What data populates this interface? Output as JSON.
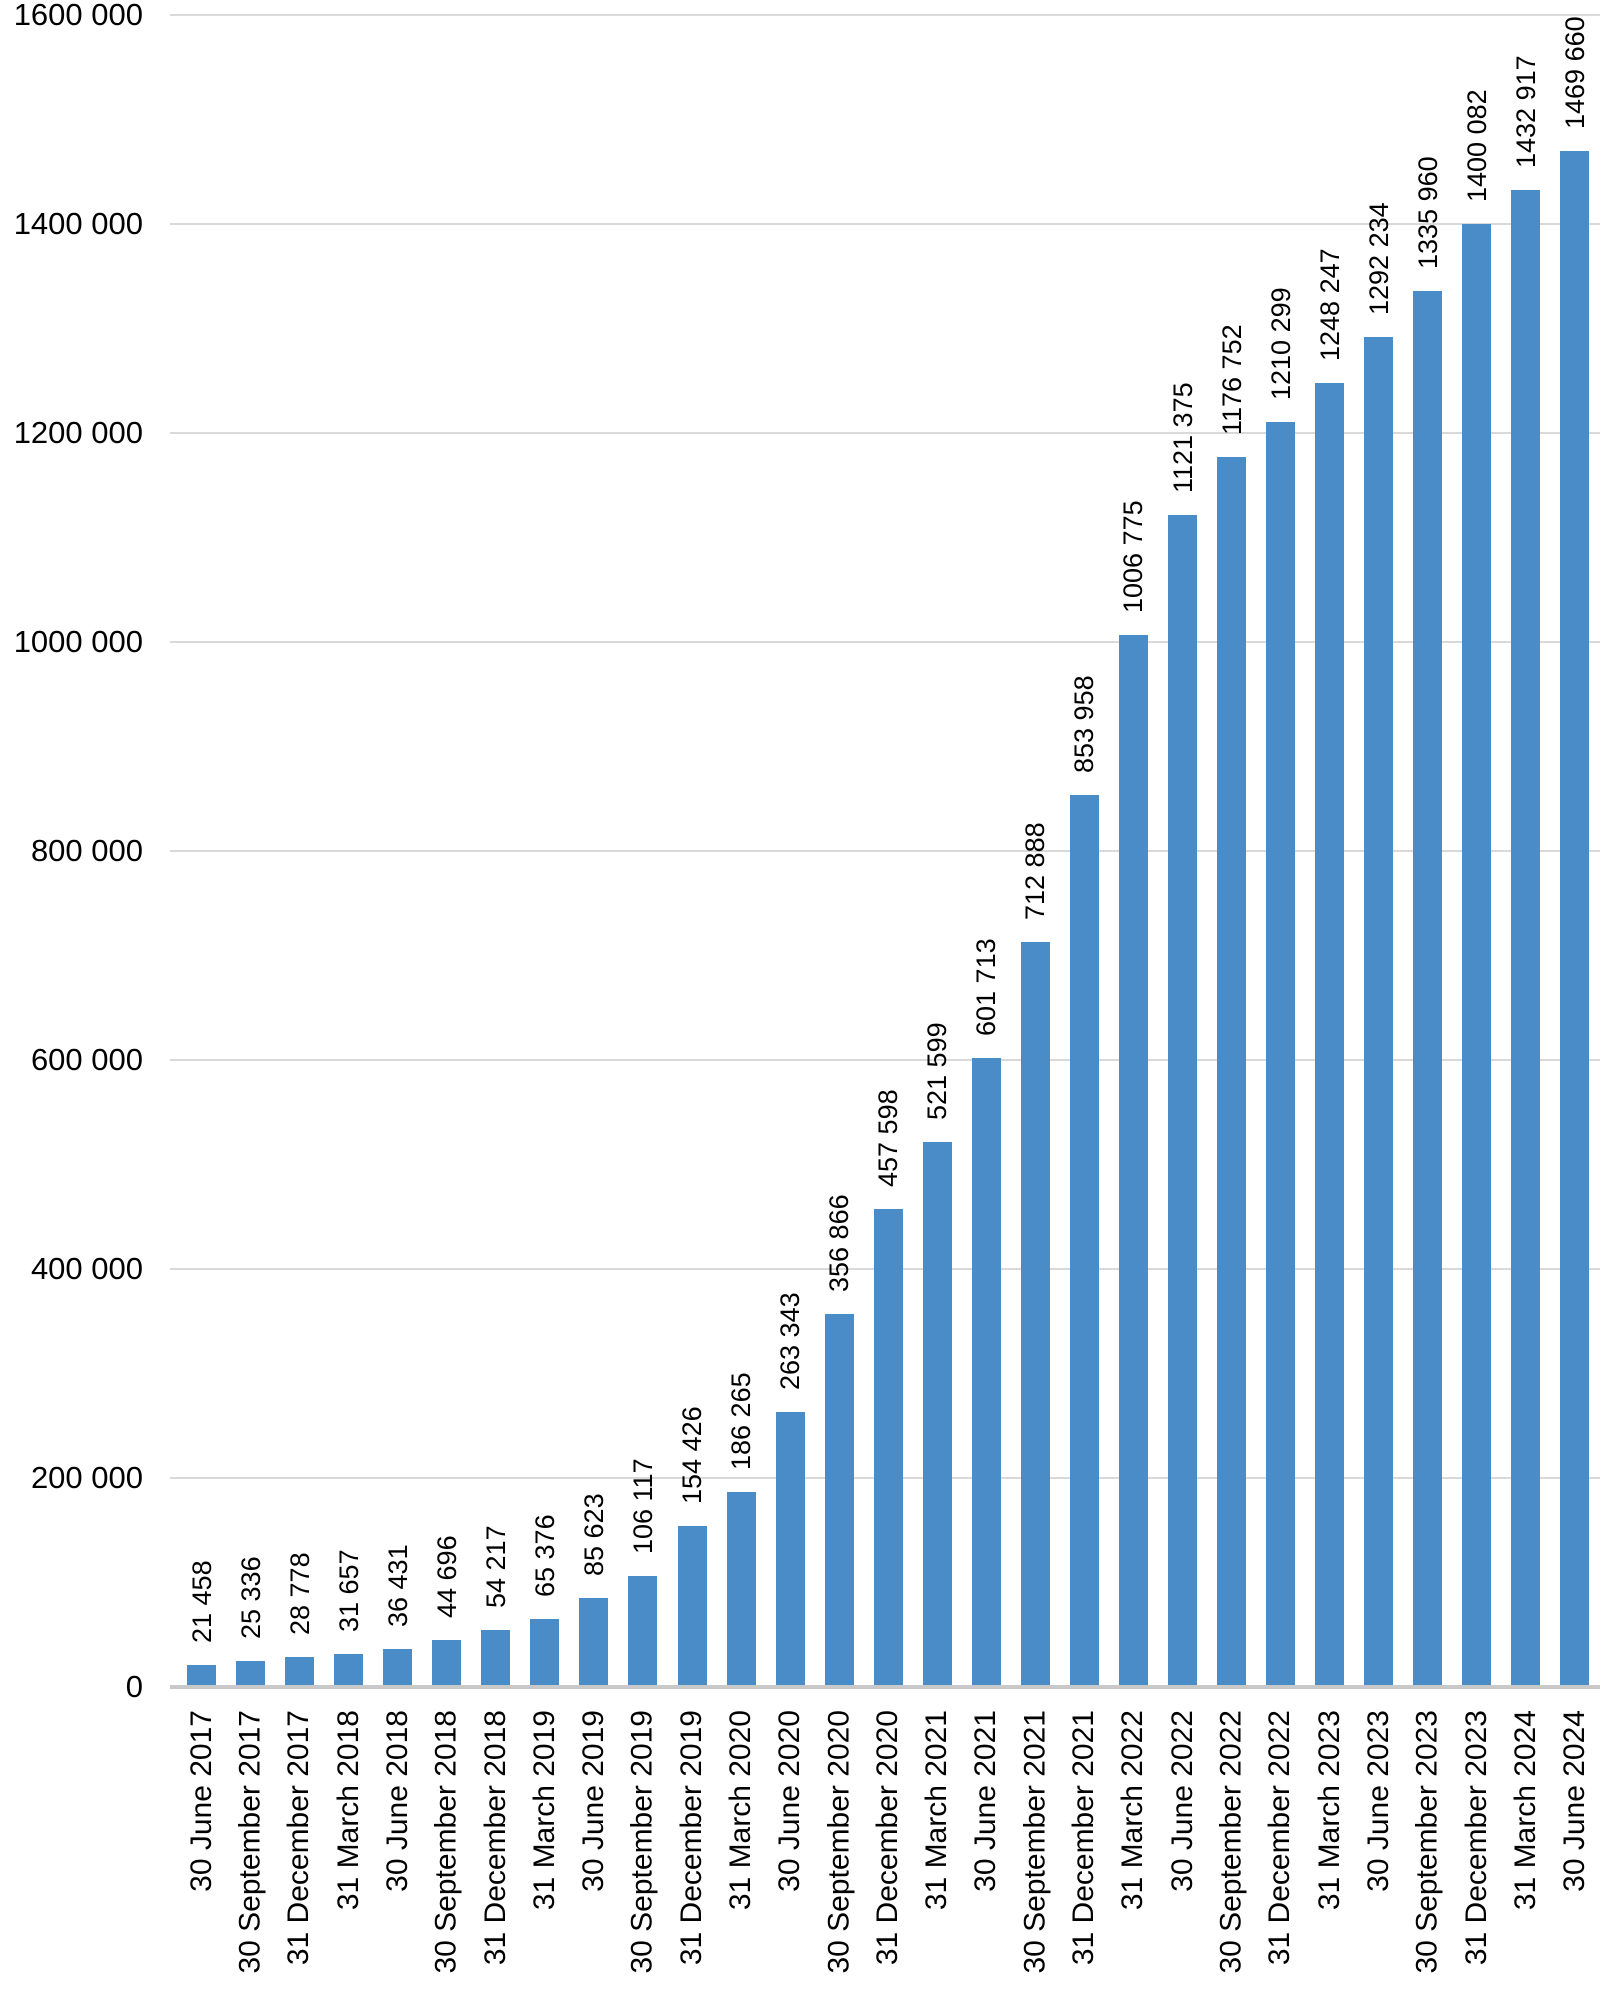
{
  "chart_data": {
    "type": "bar",
    "title": "",
    "legend_position": "none",
    "grid": true,
    "bar_orientation": "vertical",
    "data_label_rotation_deg": 90,
    "category_label_rotation_deg": 90,
    "categories": [
      "30 June 2017",
      "30 September 2017",
      "31 December 2017",
      "31 March 2018",
      "30 June 2018",
      "30 September 2018",
      "31 December 2018",
      "31 March 2019",
      "30 June 2019",
      "30 September 2019",
      "31 December 2019",
      "31 March 2020",
      "30 June 2020",
      "30 September 2020",
      "31 December 2020",
      "31 March 2021",
      "30 June 2021",
      "30 September 2021",
      "31 December 2021",
      "31 March 2022",
      "30 June 2022",
      "30 September 2022",
      "31 December 2022",
      "31 March 2023",
      "30 June 2023",
      "30 September 2023",
      "31 December 2023",
      "31 March 2024",
      "30 June 2024"
    ],
    "values": [
      21458,
      25336,
      28778,
      31657,
      36431,
      44696,
      54217,
      65376,
      85623,
      106117,
      154426,
      186265,
      263343,
      356866,
      457598,
      521599,
      601713,
      712888,
      853958,
      1006775,
      1121375,
      1176752,
      1210299,
      1248247,
      1292234,
      1335960,
      1400082,
      1432917,
      1469660
    ],
    "data_labels": [
      "21 458",
      "25 336",
      "28 778",
      "31 657",
      "36 431",
      "44 696",
      "54 217",
      "65 376",
      "85 623",
      "106 117",
      "154 426",
      "186 265",
      "263 343",
      "356 866",
      "457 598",
      "521 599",
      "601 713",
      "712 888",
      "853 958",
      "1006 775",
      "1121 375",
      "1176 752",
      "1210 299",
      "1248 247",
      "1292 234",
      "1335 960",
      "1400 082",
      "1432 917",
      "1469 660"
    ],
    "xlabel": "",
    "ylabel": "",
    "y_axis": {
      "min": 0,
      "max": 1600000,
      "step": 200000,
      "tick_labels": [
        "0",
        "200 000",
        "400 000",
        "600 000",
        "800 000",
        "1000 000",
        "1200 000",
        "1400 000",
        "1600 000"
      ]
    },
    "colors": {
      "bar": "#4a8cc8",
      "gridline": "#d9d9d9",
      "axis_line": "#c9c9c9",
      "text": "#000000",
      "background": "#ffffff"
    }
  }
}
